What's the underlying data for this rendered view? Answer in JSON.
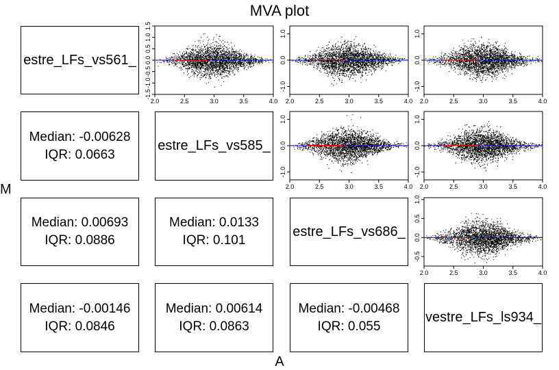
{
  "title": "MVA plot",
  "xlabel": "A",
  "ylabel": "M",
  "names": [
    "estre_LFs_vs561_",
    "estre_LFs_vs585_",
    "estre_LFs_vs686_",
    "vestre_LFs_ls934_"
  ],
  "stats": {
    "r2c1": {
      "median": "Median: -0.00628",
      "iqr": "IQR: 0.0663"
    },
    "r3c1": {
      "median": "Median: 0.00693",
      "iqr": "IQR: 0.0886"
    },
    "r3c2": {
      "median": "Median: 0.0133",
      "iqr": "IQR: 0.101"
    },
    "r4c1": {
      "median": "Median: -0.00146",
      "iqr": "IQR: 0.0846"
    },
    "r4c2": {
      "median": "Median: 0.00614",
      "iqr": "IQR: 0.0863"
    },
    "r4c3": {
      "median": "Median: -0.00468",
      "iqr": "IQR: 0.055"
    }
  },
  "chart_data": {
    "type": "scatter",
    "title": "MVA plot",
    "xlabel": "A",
    "ylabel": "M",
    "xlim": [
      2.0,
      4.0
    ],
    "x_ticks": [
      "2.0",
      "2.5",
      "3.0",
      "3.5",
      "4.0"
    ],
    "grid": false,
    "colors": {
      "points": "#000000",
      "loess": "#ff0000",
      "zero_line": "#0000ff"
    },
    "panels": [
      {
        "row": 1,
        "col": 2,
        "ylim": [
          -1.5,
          1.5
        ],
        "y_ticks": [
          "-1.5",
          "-1.0",
          "-0.5",
          "0.0",
          "0.5",
          "1.0",
          "1.5"
        ],
        "median": -0.00628,
        "iqr": 0.0663
      },
      {
        "row": 1,
        "col": 3,
        "ylim": [
          -1.3,
          1.3
        ],
        "y_ticks": [
          "-1.0",
          "0.0",
          "1.0"
        ],
        "median": 0.00693,
        "iqr": 0.0886
      },
      {
        "row": 1,
        "col": 4,
        "ylim": [
          -1.3,
          1.3
        ],
        "y_ticks": [
          "-1.0",
          "0.0",
          "1.0"
        ],
        "median": -0.00146,
        "iqr": 0.0846
      },
      {
        "row": 2,
        "col": 3,
        "ylim": [
          -1.3,
          1.3
        ],
        "y_ticks": [
          "-1.0",
          "0.0",
          "1.0"
        ],
        "median": 0.0133,
        "iqr": 0.101
      },
      {
        "row": 2,
        "col": 4,
        "ylim": [
          -1.3,
          1.3
        ],
        "y_ticks": [
          "-1.0",
          "0.0",
          "1.0"
        ],
        "median": 0.00614,
        "iqr": 0.0863
      },
      {
        "row": 3,
        "col": 4,
        "ylim": [
          -0.75,
          1.05
        ],
        "y_ticks": [
          "-0.5",
          "0.0",
          "0.5",
          "1.0"
        ],
        "median": -0.00468,
        "iqr": 0.055
      }
    ]
  }
}
